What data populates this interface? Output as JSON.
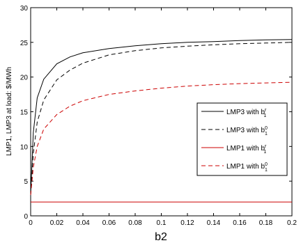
{
  "chart_data": {
    "type": "line",
    "xlabel": "b2",
    "ylabel": "LMP1, LMP3 at load: $/MWh",
    "xlim": [
      0,
      0.2
    ],
    "ylim": [
      0,
      30
    ],
    "x_ticks": [
      "0",
      "0.02",
      "0.04",
      "0.06",
      "0.08",
      "0.1",
      "0.12",
      "0.14",
      "0.16",
      "0.18",
      "0.2"
    ],
    "y_ticks": [
      "0",
      "5",
      "10",
      "15",
      "20",
      "25",
      "30"
    ],
    "grid": false,
    "legend_position": "right",
    "x": [
      0,
      0.002,
      0.005,
      0.01,
      0.02,
      0.03,
      0.04,
      0.06,
      0.08,
      0.1,
      0.12,
      0.14,
      0.16,
      0.18,
      0.2
    ],
    "series": [
      {
        "legend_main": "LMP3 with b",
        "legend_sub": "1",
        "legend_sup": "r",
        "color": "#000000",
        "dash": "solid",
        "values": [
          3,
          12,
          17,
          19.7,
          21.9,
          22.9,
          23.5,
          24.1,
          24.5,
          24.8,
          25.0,
          25.1,
          25.25,
          25.35,
          25.4
        ]
      },
      {
        "legend_main": "LMP3 with b",
        "legend_sub": "1",
        "legend_sup": "0",
        "color": "#000000",
        "dash": "dashed",
        "values": [
          3,
          9,
          13.5,
          16.7,
          19.6,
          21.0,
          22.0,
          23.2,
          23.8,
          24.2,
          24.45,
          24.65,
          24.8,
          24.9,
          25.0
        ]
      },
      {
        "legend_main": "LMP1 with b",
        "legend_sub": "1",
        "legend_sup": "r",
        "color": "#cc0000",
        "dash": "solid",
        "values": [
          2,
          2,
          2,
          2,
          2,
          2,
          2,
          2,
          2,
          2,
          2,
          2,
          2,
          2,
          2
        ]
      },
      {
        "legend_main": "LMP1 with b",
        "legend_sub": "1",
        "legend_sup": "0",
        "color": "#cc0000",
        "dash": "dashed",
        "values": [
          3,
          7,
          10,
          12.5,
          14.6,
          15.8,
          16.6,
          17.5,
          18.0,
          18.4,
          18.7,
          18.9,
          19.05,
          19.15,
          19.25
        ]
      }
    ]
  }
}
